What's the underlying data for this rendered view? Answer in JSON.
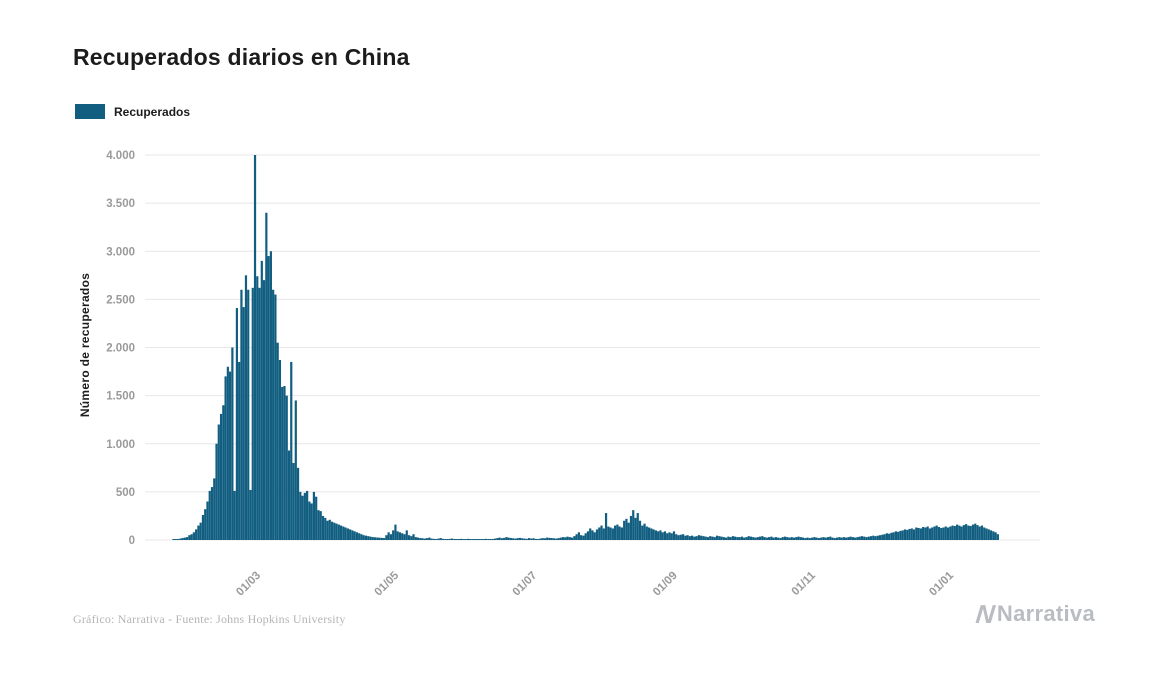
{
  "page": {
    "title": "Recuperados diarios en China"
  },
  "legend": {
    "label": "Recuperados"
  },
  "footer": {
    "caption": "Gráfico: Narrativa - Fuente: Johns Hopkins University",
    "logo_text": "Narrativa"
  },
  "chart_data": {
    "type": "bar",
    "title": "Recuperados diarios en China",
    "series_name": "Recuperados",
    "xlabel": "",
    "ylabel": "Número de recuperados",
    "ylim": [
      0,
      4000
    ],
    "grid": "horizontal",
    "legend_position": "top-left",
    "bar_color": "#115e80",
    "yticks": [
      {
        "value": 0,
        "label": "0"
      },
      {
        "value": 500,
        "label": "500"
      },
      {
        "value": 1000,
        "label": "1.000"
      },
      {
        "value": 1500,
        "label": "1.500"
      },
      {
        "value": 2000,
        "label": "2.000"
      },
      {
        "value": 2500,
        "label": "2.500"
      },
      {
        "value": 3000,
        "label": "3.000"
      },
      {
        "value": 3500,
        "label": "3.500"
      },
      {
        "value": 4000,
        "label": "4.000"
      }
    ],
    "xticks": [
      {
        "day": 36,
        "label": "01/03"
      },
      {
        "day": 97,
        "label": "01/05"
      },
      {
        "day": 158,
        "label": "01/07"
      },
      {
        "day": 220,
        "label": "01/09"
      },
      {
        "day": 281,
        "label": "01/11"
      },
      {
        "day": 342,
        "label": "01/01"
      }
    ],
    "values": [
      10,
      4,
      9,
      15,
      21,
      25,
      30,
      50,
      60,
      80,
      110,
      150,
      180,
      260,
      320,
      400,
      510,
      550,
      640,
      1000,
      1200,
      1310,
      1400,
      1700,
      1800,
      1750,
      2000,
      510,
      2410,
      1850,
      2600,
      2420,
      2750,
      2600,
      520,
      2620,
      4000,
      2740,
      2620,
      2900,
      2700,
      3400,
      2950,
      3000,
      2600,
      2550,
      2050,
      1870,
      1590,
      1600,
      1500,
      930,
      1850,
      800,
      1450,
      750,
      500,
      460,
      490,
      510,
      400,
      380,
      500,
      450,
      310,
      300,
      250,
      230,
      200,
      210,
      190,
      180,
      170,
      160,
      150,
      140,
      130,
      120,
      110,
      100,
      90,
      80,
      70,
      60,
      50,
      45,
      40,
      35,
      30,
      28,
      26,
      24,
      22,
      20,
      50,
      80,
      60,
      100,
      160,
      90,
      80,
      70,
      60,
      100,
      50,
      40,
      60,
      30,
      25,
      20,
      18,
      15,
      20,
      25,
      15,
      12,
      10,
      15,
      20,
      12,
      10,
      8,
      12,
      15,
      10,
      8,
      10,
      12,
      8,
      10,
      12,
      6,
      8,
      10,
      5,
      8,
      6,
      10,
      12,
      8,
      6,
      10,
      15,
      20,
      25,
      18,
      22,
      30,
      25,
      20,
      18,
      15,
      20,
      22,
      18,
      15,
      12,
      20,
      15,
      18,
      12,
      10,
      15,
      20,
      18,
      25,
      22,
      20,
      18,
      15,
      20,
      25,
      30,
      28,
      35,
      30,
      25,
      40,
      60,
      80,
      50,
      45,
      70,
      90,
      120,
      100,
      80,
      110,
      130,
      150,
      120,
      280,
      140,
      130,
      120,
      150,
      160,
      140,
      130,
      200,
      220,
      180,
      250,
      310,
      230,
      280,
      200,
      150,
      170,
      140,
      130,
      120,
      110,
      100,
      90,
      100,
      80,
      90,
      70,
      80,
      70,
      90,
      60,
      50,
      55,
      60,
      45,
      50,
      40,
      45,
      35,
      40,
      50,
      45,
      40,
      35,
      30,
      40,
      35,
      30,
      45,
      40,
      35,
      30,
      25,
      35,
      30,
      40,
      35,
      30,
      30,
      35,
      25,
      30,
      40,
      35,
      30,
      25,
      30,
      35,
      40,
      30,
      25,
      30,
      35,
      25,
      30,
      25,
      20,
      30,
      35,
      30,
      25,
      30,
      25,
      30,
      35,
      30,
      25,
      20,
      25,
      20,
      25,
      30,
      25,
      20,
      25,
      30,
      25,
      30,
      35,
      25,
      20,
      25,
      30,
      25,
      30,
      25,
      30,
      35,
      30,
      25,
      30,
      35,
      40,
      35,
      30,
      35,
      40,
      45,
      40,
      45,
      50,
      55,
      60,
      70,
      65,
      75,
      80,
      90,
      85,
      95,
      100,
      110,
      105,
      115,
      120,
      110,
      130,
      125,
      120,
      135,
      130,
      140,
      120,
      130,
      140,
      150,
      135,
      125,
      130,
      140,
      130,
      140,
      150,
      145,
      160,
      150,
      140,
      155,
      165,
      150,
      145,
      160,
      170,
      155,
      140,
      150,
      130,
      120,
      110,
      100,
      90,
      80,
      60
    ]
  }
}
